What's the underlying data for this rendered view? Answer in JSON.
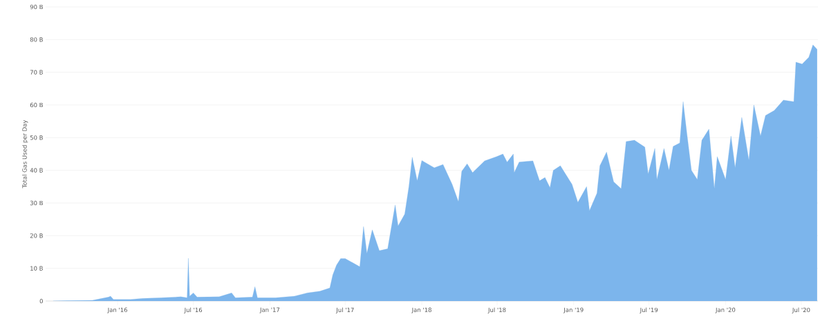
{
  "chart_data": {
    "type": "area",
    "ylabel": "Total Gas Used per Day",
    "grid": "y",
    "xlim": [
      "2015-07-12",
      "2020-08-10"
    ],
    "ylim": [
      0,
      90
    ],
    "yticks": [
      0,
      {
        "value": 10,
        "label": "10 B"
      },
      {
        "value": 20,
        "label": "20 B"
      },
      {
        "value": 30,
        "label": "30 B"
      },
      {
        "value": 40,
        "label": "40 B"
      },
      {
        "value": 50,
        "label": "50 B"
      },
      {
        "value": 60,
        "label": "60 B"
      },
      {
        "value": 70,
        "label": "70 B"
      },
      {
        "value": 80,
        "label": "80 B"
      },
      {
        "value": 90,
        "label": "90 B"
      }
    ],
    "xticks": [
      {
        "value": "2016-01-01",
        "label": "Jan '16"
      },
      {
        "value": "2016-07-01",
        "label": "Jul '16"
      },
      {
        "value": "2017-01-01",
        "label": "Jan '17"
      },
      {
        "value": "2017-07-01",
        "label": "Jul '17"
      },
      {
        "value": "2018-01-01",
        "label": "Jan '18"
      },
      {
        "value": "2018-07-01",
        "label": "Jul '18"
      },
      {
        "value": "2019-01-01",
        "label": "Jan '19"
      },
      {
        "value": "2019-07-01",
        "label": "Jul '19"
      },
      {
        "value": "2020-01-01",
        "label": "Jan '20"
      },
      {
        "value": "2020-07-01",
        "label": "Jul '20"
      }
    ],
    "series": [
      {
        "color": "#7cb5ec",
        "x": [
          "2015-07-30",
          "2015-09-01",
          "2015-11-01",
          "2015-12-10",
          "2015-12-15",
          "2015-12-22",
          "2016-02-01",
          "2016-03-01",
          "2016-04-15",
          "2016-06-01",
          "2016-06-16",
          "2016-06-19",
          "2016-06-22",
          "2016-07-01",
          "2016-07-10",
          "2016-09-01",
          "2016-10-01",
          "2016-10-10",
          "2016-11-20",
          "2016-11-26",
          "2016-12-02",
          "2017-01-15",
          "2017-03-01",
          "2017-04-01",
          "2017-05-01",
          "2017-05-25",
          "2017-06-01",
          "2017-06-10",
          "2017-06-20",
          "2017-07-01",
          "2017-07-15",
          "2017-08-05",
          "2017-08-14",
          "2017-08-22",
          "2017-09-04",
          "2017-09-21",
          "2017-10-11",
          "2017-10-29",
          "2017-11-05",
          "2017-11-21",
          "2017-12-01",
          "2017-12-09",
          "2017-12-21",
          "2018-01-01",
          "2018-01-31",
          "2018-02-21",
          "2018-03-15",
          "2018-03-30",
          "2018-04-07",
          "2018-04-20",
          "2018-05-03",
          "2018-06-01",
          "2018-06-30",
          "2018-07-15",
          "2018-07-25",
          "2018-08-09",
          "2018-08-11",
          "2018-08-23",
          "2018-09-25",
          "2018-10-11",
          "2018-10-24",
          "2018-11-05",
          "2018-11-13",
          "2018-11-30",
          "2018-12-28",
          "2019-01-11",
          "2019-02-01",
          "2019-02-08",
          "2019-02-26",
          "2019-03-05",
          "2019-03-21",
          "2019-04-07",
          "2019-04-25",
          "2019-05-07",
          "2019-05-27",
          "2019-06-21",
          "2019-06-29",
          "2019-07-15",
          "2019-07-20",
          "2019-08-06",
          "2019-08-18",
          "2019-08-28",
          "2019-09-13",
          "2019-09-21",
          "2019-09-30",
          "2019-10-11",
          "2019-10-25",
          "2019-11-05",
          "2019-11-22",
          "2019-12-05",
          "2019-12-12",
          "2020-01-01",
          "2020-01-14",
          "2020-01-24",
          "2020-02-09",
          "2020-02-26",
          "2020-03-09",
          "2020-03-25",
          "2020-04-06",
          "2020-04-27",
          "2020-05-19",
          "2020-06-13",
          "2020-06-18",
          "2020-07-03",
          "2020-07-19",
          "2020-07-29",
          "2020-08-08"
        ],
        "values": [
          0,
          0.1,
          0.2,
          1.2,
          1.5,
          0.5,
          0.5,
          0.8,
          1.0,
          1.3,
          1.0,
          13.1,
          1.5,
          2.5,
          1.2,
          1.3,
          2.5,
          1.0,
          1.2,
          4.4,
          1.0,
          1.0,
          1.5,
          2.5,
          3.0,
          4.0,
          8,
          11,
          13,
          13,
          12,
          10.5,
          22.8,
          14.6,
          21.8,
          15.4,
          16,
          29.4,
          23,
          26.6,
          35,
          44,
          36.8,
          43,
          40.8,
          41.8,
          35.7,
          30.4,
          39.7,
          42,
          39.3,
          42.9,
          44.2,
          45,
          42.5,
          45,
          39.3,
          42.5,
          42.9,
          36.8,
          37.8,
          34.7,
          40,
          41.4,
          35.7,
          30.2,
          35,
          27.7,
          33,
          41.4,
          45.6,
          36.5,
          34.4,
          48.8,
          49.2,
          47.1,
          38.9,
          46.7,
          37.2,
          46.7,
          40,
          47.3,
          48.4,
          61,
          51.3,
          40,
          37.2,
          49.2,
          52.6,
          34.4,
          44.2,
          37.2,
          50.5,
          40.8,
          56.2,
          43.1,
          60,
          50.5,
          56.8,
          58.3,
          61.5,
          61,
          73.1,
          72.5,
          74.6,
          78.4,
          77
        ]
      }
    ]
  }
}
